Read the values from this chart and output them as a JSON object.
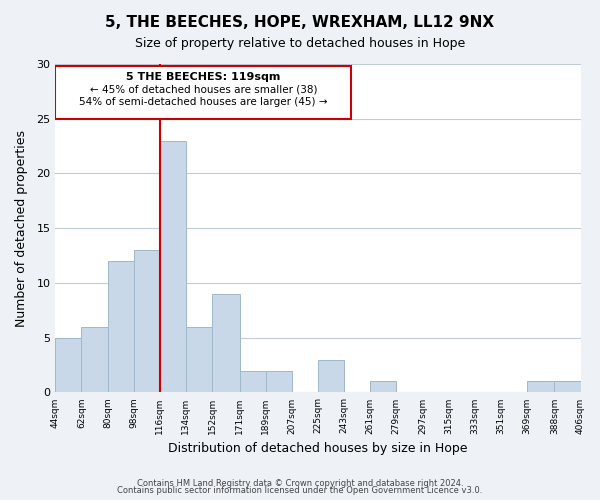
{
  "title": "5, THE BEECHES, HOPE, WREXHAM, LL12 9NX",
  "subtitle": "Size of property relative to detached houses in Hope",
  "xlabel": "Distribution of detached houses by size in Hope",
  "ylabel": "Number of detached properties",
  "bar_color": "#c8d8e8",
  "bar_edge_color": "#a0b8cc",
  "vline_color": "#cc0000",
  "vline_x": 116,
  "bin_edges": [
    44,
    62,
    80,
    98,
    116,
    134,
    152,
    171,
    189,
    207,
    225,
    243,
    261,
    279,
    297,
    315,
    333,
    351,
    369,
    388,
    406
  ],
  "bar_heights": [
    5,
    6,
    12,
    13,
    23,
    6,
    9,
    2,
    2,
    0,
    3,
    0,
    1,
    0,
    0,
    0,
    0,
    0,
    1,
    1
  ],
  "ylim": [
    0,
    30
  ],
  "yticks": [
    0,
    5,
    10,
    15,
    20,
    25,
    30
  ],
  "xtick_labels": [
    "44sqm",
    "62sqm",
    "80sqm",
    "98sqm",
    "116sqm",
    "134sqm",
    "152sqm",
    "171sqm",
    "189sqm",
    "207sqm",
    "225sqm",
    "243sqm",
    "261sqm",
    "279sqm",
    "297sqm",
    "315sqm",
    "333sqm",
    "351sqm",
    "369sqm",
    "388sqm",
    "406sqm"
  ],
  "annotation_title": "5 THE BEECHES: 119sqm",
  "annotation_line1": "← 45% of detached houses are smaller (38)",
  "annotation_line2": "54% of semi-detached houses are larger (45) →",
  "annotation_box_color": "#ffffff",
  "annotation_box_edge": "#cc0000",
  "footer1": "Contains HM Land Registry data © Crown copyright and database right 2024.",
  "footer2": "Contains public sector information licensed under the Open Government Licence v3.0.",
  "background_color": "#eef2f6",
  "plot_background": "#ffffff",
  "grid_color": "#c0ccd8"
}
